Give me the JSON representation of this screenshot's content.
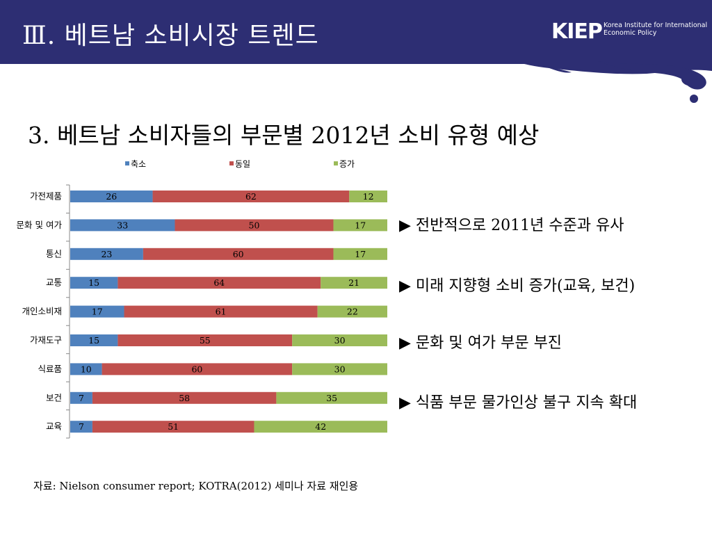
{
  "header": {
    "title": "Ⅲ.  베트남 소비시장 트렌드",
    "logo": {
      "mark": "KIEP",
      "line1": "Korea Institute for International",
      "line2": "Economic Policy"
    }
  },
  "subtitle": "3. 베트남 소비자들의 부문별 2012년 소비 유형 예상",
  "chart_data": {
    "type": "bar",
    "orientation": "horizontal",
    "stacked": true,
    "categories": [
      "가전제품",
      "문화 및 여가",
      "통신",
      "교통",
      "개인소비재",
      "가재도구",
      "식료품",
      "보건",
      "교육"
    ],
    "series": [
      {
        "name": "축소",
        "color": "#4f81bd",
        "values": [
          26,
          33,
          23,
          15,
          17,
          15,
          10,
          7,
          7
        ]
      },
      {
        "name": "동일",
        "color": "#c0504d",
        "values": [
          62,
          50,
          60,
          64,
          61,
          55,
          60,
          58,
          51
        ]
      },
      {
        "name": "증가",
        "color": "#9bbb59",
        "values": [
          12,
          17,
          17,
          21,
          22,
          30,
          30,
          35,
          42
        ]
      }
    ],
    "xlim": [
      0,
      100
    ],
    "legend": "top",
    "grid": false,
    "data_labels": true,
    "title": "",
    "xlabel": "",
    "ylabel": ""
  },
  "bullets": [
    "▶  전반적으로 2011년 수준과 유사",
    "▶  미래 지향형 소비 증가(교육, 보건)",
    "▶  문화 및 여가 부문 부진",
    "▶  식품 부문 물가인상 불구 지속 확대"
  ],
  "source": "자료: Nielson consumer report; KOTRA(2012) 세미나 자료 재인용"
}
